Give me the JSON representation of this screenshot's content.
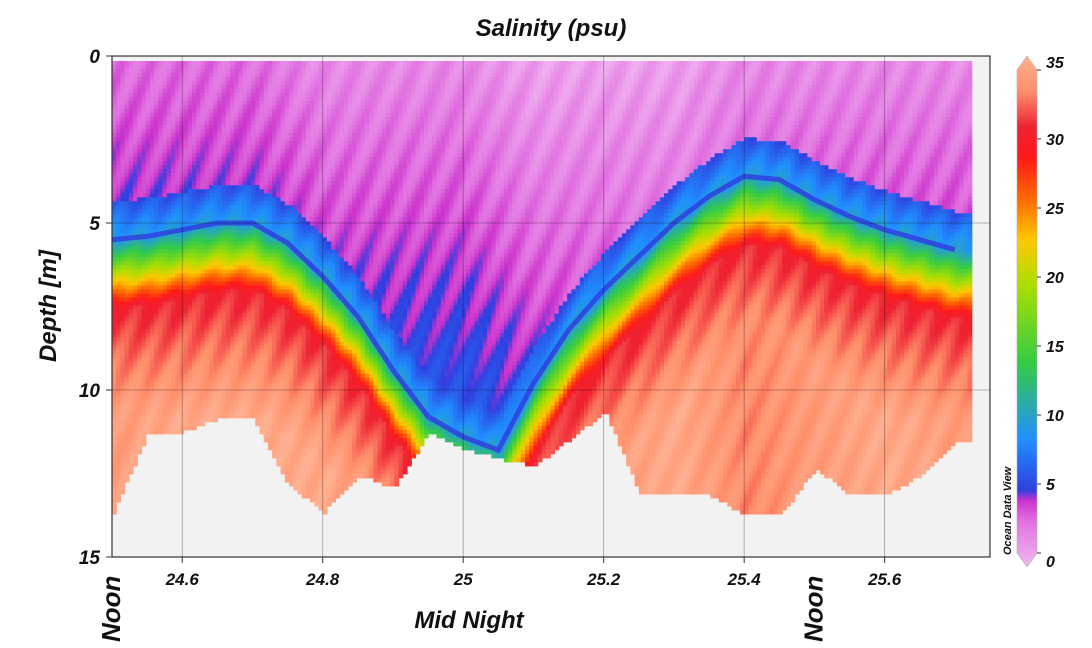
{
  "chart_data": {
    "type": "heatmap",
    "title": "Salinity (psu)",
    "xlabel": "Mid Night",
    "ylabel": "Depth [m]",
    "xlim": [
      24.5,
      25.75
    ],
    "ylim": [
      0,
      15
    ],
    "y_inverted": true,
    "x_ticks": [
      24.6,
      24.8,
      25,
      25.2,
      25.4,
      25.6
    ],
    "x_tick_labels": [
      "24.6",
      "24.8",
      "25",
      "25.2",
      "25.4",
      "25.6"
    ],
    "y_ticks": [
      0,
      5,
      10,
      15
    ],
    "y_tick_labels": [
      "0",
      "5",
      "10",
      "15"
    ],
    "colorbar": {
      "range": [
        0,
        35
      ],
      "ticks": [
        0,
        5,
        10,
        15,
        20,
        25,
        30,
        35
      ],
      "tick_labels": [
        "0",
        "5",
        "10",
        "15",
        "20",
        "25",
        "30",
        "35"
      ],
      "colors": [
        "#f2b8f2",
        "#e070e0",
        "#cc33cc",
        "#2f3fe0",
        "#2090ff",
        "#33cc44",
        "#aade00",
        "#ffc800",
        "#ff6a00",
        "#ff1a1a",
        "#ee2233",
        "#ff8f6b",
        "#ffb090"
      ],
      "stops": [
        0,
        0.09,
        0.13,
        0.15,
        0.25,
        0.4,
        0.55,
        0.64,
        0.72,
        0.8,
        0.86,
        0.93,
        1.0
      ]
    },
    "annotations": {
      "noon_left": "Noon",
      "noon_right": "Noon",
      "noon_left_x": 24.5,
      "noon_right_x": 25.5,
      "watermark": "Ocean Data View"
    },
    "halocline": {
      "x": [
        24.5,
        24.55,
        24.6,
        24.65,
        24.7,
        24.75,
        24.8,
        24.85,
        24.9,
        24.95,
        25.0,
        25.05,
        25.1,
        25.15,
        25.2,
        25.25,
        25.3,
        25.35,
        25.4,
        25.45,
        25.5,
        25.55,
        25.6,
        25.65,
        25.7
      ],
      "depth": [
        5.5,
        5.4,
        5.2,
        5.0,
        5.0,
        5.6,
        6.6,
        7.8,
        9.4,
        10.8,
        11.4,
        11.8,
        9.8,
        8.2,
        7.0,
        6.0,
        5.0,
        4.2,
        3.6,
        3.7,
        4.3,
        4.8,
        5.2,
        5.5,
        5.8
      ]
    },
    "data_bottom": {
      "x": [
        24.5,
        24.55,
        24.6,
        24.65,
        24.7,
        24.75,
        24.8,
        24.85,
        24.9,
        24.95,
        25.0,
        25.05,
        25.1,
        25.15,
        25.2,
        25.25,
        25.3,
        25.35,
        25.4,
        25.45,
        25.5,
        25.55,
        25.6,
        25.65,
        25.7
      ],
      "depth": [
        13.6,
        11.2,
        11.2,
        10.8,
        10.8,
        12.8,
        13.6,
        12.5,
        12.9,
        11.2,
        11.7,
        12.0,
        12.2,
        11.4,
        10.6,
        13.1,
        13.1,
        13.1,
        13.7,
        13.7,
        12.3,
        13.1,
        13.1,
        12.5,
        11.5
      ]
    },
    "series": [
      {
        "x": [
          24.5,
          24.6,
          24.7,
          24.8,
          24.9,
          25.0,
          25.1,
          25.2,
          25.3,
          25.4,
          25.5,
          25.6,
          25.7
        ],
        "surface_salinity": [
          3,
          3,
          3,
          2,
          2,
          2,
          1,
          1,
          1,
          2,
          2,
          2,
          2
        ],
        "deep_salinity": [
          32,
          33,
          33,
          33,
          31,
          28,
          31,
          32,
          33,
          31,
          32,
          33,
          32
        ]
      }
    ]
  }
}
